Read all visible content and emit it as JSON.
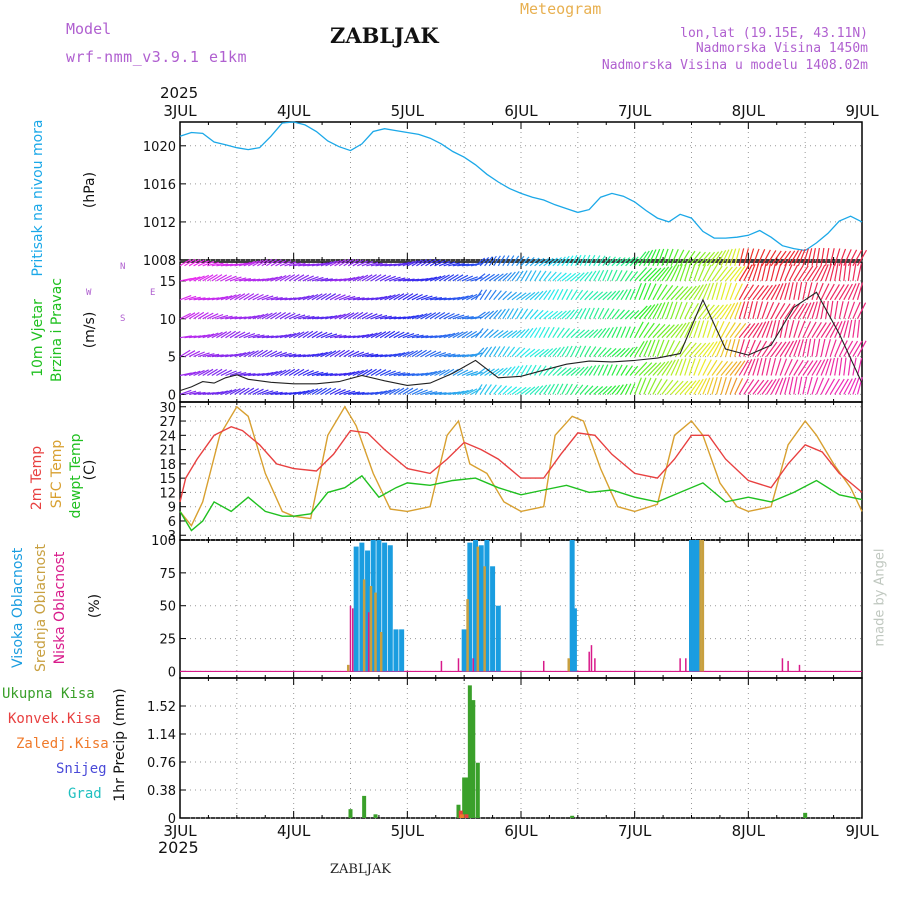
{
  "header": {
    "model_label": "Model",
    "model_name": "wrf-nmm_v3.9.1 e1km",
    "station_title": "ZABLJAK",
    "meteogram_label": "Meteogram",
    "lonlat": "lon,lat (19.15E, 43.11N)",
    "altitude": "Nadmorska Visina 1450m",
    "model_altitude": "Nadmorska Visina u modelu 1408.02m",
    "year_top": "2025",
    "year_bottom": "2025",
    "footer_station": "ZABLJAK",
    "watermark": "made by Angel"
  },
  "colors": {
    "pressure": "#1ba8e8",
    "temp2m": "#e84040",
    "sfc": "#d8a030",
    "dewpt": "#20c020",
    "cloud_high": "#1a9de0",
    "cloud_mid": "#c8a040",
    "cloud_low": "#d81a8a",
    "precip_total": "#3aa02a",
    "precip_conv": "#e84040",
    "precip_strat": "#f07a2a",
    "snow": "#4a4ad8",
    "hail": "#20c0c0",
    "label_purple": "#b060d0",
    "label_orange": "#e8b050"
  },
  "panel_labels": {
    "pressure": {
      "name": "Pritisak na nivou mora",
      "unit": "(hPa)"
    },
    "wind": {
      "line1": "10m Vjetar",
      "line2": "Brzina i Pravac",
      "unit": "(m/s)",
      "compass_n": "N",
      "compass_s": "S",
      "compass_w": "W",
      "compass_e": "E"
    },
    "temp": {
      "t2m": "2m Temp",
      "sfc": "SFC Temp",
      "dew": "dewpt Temp",
      "unit": "(C)"
    },
    "cloud": {
      "high": "Visoka Oblacnost",
      "mid": "Srednja Oblacnost",
      "low": "Niska Oblacnost",
      "unit": "(%)"
    },
    "precip": {
      "total": "Ukupna Kisa",
      "conv": "Konvek.Kisa",
      "strat": "Zaledj.Kisa",
      "snow": "Snijeg",
      "hail": "Grad",
      "axis": "1hr Precip (mm)"
    }
  },
  "chart_data": [
    {
      "type": "line",
      "title": "Pritisak na nivou mora",
      "ylabel": "(hPa)",
      "x_tick_labels": [
        "3JUL",
        "4JUL",
        "5JUL",
        "6JUL",
        "7JUL",
        "8JUL",
        "9JUL"
      ],
      "y_tick_labels": [
        "1008",
        "1012",
        "1016",
        "1020"
      ],
      "ylim": [
        1008,
        1022.5
      ],
      "grid": true,
      "series": [
        {
          "name": "Pritisak na nivou mora",
          "x_days": [
            0,
            0.1,
            0.2,
            0.3,
            0.4,
            0.5,
            0.6,
            0.7,
            0.8,
            0.9,
            1.0,
            1.1,
            1.2,
            1.3,
            1.4,
            1.5,
            1.6,
            1.7,
            1.8,
            1.9,
            2.0,
            2.1,
            2.2,
            2.3,
            2.4,
            2.5,
            2.6,
            2.7,
            2.8,
            2.9,
            3.0,
            3.1,
            3.2,
            3.3,
            3.4,
            3.5,
            3.6,
            3.7,
            3.8,
            3.9,
            4.0,
            4.1,
            4.2,
            4.3,
            4.4,
            4.5,
            4.6,
            4.7,
            4.8,
            4.9,
            5.0,
            5.1,
            5.2,
            5.3,
            5.4,
            5.5,
            5.6,
            5.7,
            5.8,
            5.9,
            6.0
          ],
          "values": [
            1021.0,
            1021.4,
            1021.3,
            1020.4,
            1020.1,
            1019.8,
            1019.6,
            1019.8,
            1021.0,
            1022.4,
            1022.5,
            1022.2,
            1021.5,
            1020.5,
            1019.9,
            1019.5,
            1020.2,
            1021.5,
            1021.8,
            1021.6,
            1021.4,
            1021.2,
            1020.8,
            1020.2,
            1019.4,
            1018.8,
            1018.0,
            1017.0,
            1016.2,
            1015.5,
            1015.0,
            1014.6,
            1014.3,
            1013.8,
            1013.4,
            1013.0,
            1013.3,
            1014.6,
            1015.0,
            1014.7,
            1014.1,
            1013.2,
            1012.4,
            1012.0,
            1012.8,
            1012.4,
            1011.0,
            1010.3,
            1010.3,
            1010.4,
            1010.6,
            1011.1,
            1010.4,
            1009.5,
            1009.2,
            1009.0,
            1009.8,
            1010.8,
            1012.1,
            1012.6,
            1012.0
          ]
        }
      ]
    },
    {
      "type": "line",
      "title": "10m Vjetar Brzina i Pravac",
      "ylabel": "(m/s)",
      "y_tick_labels": [
        "0",
        "5",
        "10",
        "15"
      ],
      "ylim": [
        -1,
        17.5
      ],
      "grid": true,
      "series": [
        {
          "name": "10m Vjetar Brzina i Pravac",
          "x_days": [
            0,
            0.1,
            0.2,
            0.3,
            0.4,
            0.5,
            0.6,
            0.8,
            1.0,
            1.2,
            1.4,
            1.6,
            1.8,
            2.0,
            2.2,
            2.4,
            2.6,
            2.8,
            3.0,
            3.2,
            3.4,
            3.6,
            3.8,
            4.0,
            4.2,
            4.4,
            4.6,
            4.8,
            5.0,
            5.2,
            5.4,
            5.6,
            5.8,
            6.0
          ],
          "values": [
            0.5,
            1.0,
            1.7,
            1.5,
            2.2,
            2.6,
            2.0,
            1.6,
            1.4,
            1.4,
            1.7,
            2.5,
            1.8,
            1.2,
            1.5,
            2.8,
            4.5,
            2.2,
            2.4,
            3.2,
            4.0,
            4.4,
            4.3,
            4.5,
            4.8,
            5.4,
            12.5,
            6.0,
            5.2,
            6.5,
            11.5,
            13.5,
            8.0,
            1.5
          ]
        }
      ]
    },
    {
      "type": "line",
      "ylabel": "(C)",
      "y_tick_labels": [
        "3",
        "6",
        "9",
        "12",
        "15",
        "18",
        "21",
        "24",
        "27",
        "30"
      ],
      "ylim": [
        2,
        31
      ],
      "grid": true,
      "series": [
        {
          "name": "2m Temp",
          "x_days": [
            0,
            0.05,
            0.15,
            0.3,
            0.45,
            0.55,
            0.7,
            0.85,
            1.0,
            1.2,
            1.35,
            1.5,
            1.65,
            1.8,
            2.0,
            2.2,
            2.35,
            2.5,
            2.65,
            2.8,
            3.0,
            3.2,
            3.35,
            3.5,
            3.65,
            3.8,
            4.0,
            4.2,
            4.35,
            4.5,
            4.65,
            4.8,
            5.0,
            5.2,
            5.35,
            5.5,
            5.65,
            5.8,
            6.0
          ],
          "values": [
            10.0,
            15.0,
            19.0,
            24.0,
            25.8,
            25.0,
            22.0,
            18.0,
            17.0,
            16.5,
            20.0,
            25.0,
            24.5,
            21.0,
            17.0,
            16.0,
            19.0,
            22.5,
            21.0,
            19.0,
            15.0,
            15.0,
            20.0,
            24.5,
            24.0,
            20.0,
            16.0,
            15.0,
            19.0,
            24.0,
            24.0,
            19.0,
            14.5,
            13.0,
            18.0,
            22.0,
            20.5,
            16.0,
            12.0
          ]
        },
        {
          "name": "SFC Temp",
          "x_days": [
            0,
            0.1,
            0.2,
            0.35,
            0.5,
            0.6,
            0.75,
            0.9,
            1.0,
            1.15,
            1.3,
            1.45,
            1.55,
            1.7,
            1.85,
            2.0,
            2.2,
            2.35,
            2.45,
            2.55,
            2.7,
            2.85,
            3.0,
            3.2,
            3.3,
            3.45,
            3.55,
            3.7,
            3.85,
            4.0,
            4.2,
            4.35,
            4.5,
            4.6,
            4.75,
            4.9,
            5.0,
            5.2,
            5.35,
            5.5,
            5.6,
            5.75,
            5.9,
            6.0
          ],
          "values": [
            8.0,
            5.0,
            10.0,
            24.0,
            30.0,
            28.0,
            16.0,
            8.0,
            7.0,
            6.5,
            24.0,
            30.0,
            26.0,
            16.0,
            8.5,
            8.0,
            9.0,
            24.0,
            27.0,
            18.0,
            16.0,
            10.0,
            8.0,
            9.0,
            24.0,
            28.0,
            27.0,
            17.0,
            9.0,
            8.0,
            9.5,
            24.0,
            27.0,
            24.0,
            14.0,
            9.0,
            8.0,
            9.0,
            22.0,
            27.0,
            24.0,
            18.0,
            13.0,
            8.0
          ]
        },
        {
          "name": "dewpt Temp",
          "x_days": [
            0,
            0.1,
            0.2,
            0.3,
            0.45,
            0.6,
            0.75,
            0.9,
            1.0,
            1.15,
            1.3,
            1.45,
            1.6,
            1.75,
            1.9,
            2.0,
            2.2,
            2.4,
            2.6,
            2.8,
            3.0,
            3.2,
            3.4,
            3.6,
            3.8,
            4.0,
            4.2,
            4.4,
            4.6,
            4.8,
            5.0,
            5.2,
            5.4,
            5.6,
            5.8,
            6.0
          ],
          "values": [
            8.0,
            4.0,
            6.0,
            10.0,
            8.0,
            11.0,
            8.0,
            7.0,
            7.0,
            7.5,
            12.0,
            13.0,
            15.5,
            11.0,
            13.0,
            14.0,
            13.5,
            14.5,
            15.0,
            13.0,
            11.5,
            12.5,
            13.5,
            12.0,
            12.5,
            11.0,
            10.0,
            12.0,
            14.0,
            10.0,
            11.0,
            10.0,
            12.0,
            14.5,
            11.5,
            10.5
          ]
        }
      ]
    },
    {
      "type": "bar",
      "ylabel": "(%)",
      "y_tick_labels": [
        "0",
        "25",
        "50",
        "75",
        "100"
      ],
      "ylim": [
        -5,
        100
      ],
      "grid": true,
      "series": [
        {
          "name": "Visoka Oblacnost",
          "x_days": [
            1.55,
            1.6,
            1.65,
            1.7,
            1.75,
            1.8,
            1.85,
            1.9,
            1.95,
            2.5,
            2.55,
            2.6,
            2.65,
            2.7,
            2.75,
            2.8,
            3.45,
            3.47,
            4.5,
            4.52,
            4.55
          ],
          "values": [
            95,
            98,
            92,
            100,
            100,
            98,
            96,
            32,
            32,
            32,
            98,
            100,
            96,
            100,
            80,
            50,
            100,
            48,
            100,
            100,
            100
          ]
        },
        {
          "name": "Srednja Oblacnost",
          "x_days": [
            1.48,
            1.62,
            1.68,
            1.72,
            1.77,
            2.53,
            2.62,
            2.68,
            3.42,
            4.58,
            4.6
          ],
          "values": [
            5,
            70,
            65,
            60,
            30,
            55,
            95,
            80,
            10,
            100,
            100
          ]
        },
        {
          "name": "Niska Oblacnost",
          "x_days": [
            1.5,
            1.52,
            1.66,
            2.3,
            2.45,
            2.58,
            3.2,
            3.6,
            3.62,
            3.65,
            4.4,
            4.45,
            5.3,
            5.35,
            5.45
          ],
          "values": [
            50,
            48,
            45,
            8,
            10,
            10,
            8,
            15,
            20,
            10,
            10,
            10,
            10,
            8,
            5
          ]
        }
      ]
    },
    {
      "type": "bar",
      "ylabel": "1hr Precip (mm)",
      "y_tick_labels": [
        "0",
        "0.38",
        "0.76",
        "1.14",
        "1.52"
      ],
      "ylim": [
        0,
        1.9
      ],
      "grid": true,
      "series": [
        {
          "name": "Ukupna Kisa",
          "x_days": [
            1.5,
            1.62,
            1.72,
            2.45,
            2.5,
            2.53,
            2.55,
            2.58,
            2.62,
            3.45,
            5.5
          ],
          "values": [
            0.12,
            0.3,
            0.05,
            0.18,
            0.55,
            0.55,
            1.8,
            1.6,
            0.75,
            0.03,
            0.07
          ]
        },
        {
          "name": "Konvek.Kisa",
          "x_days": [
            2.47,
            2.52
          ],
          "values": [
            0.1,
            0.05
          ]
        },
        {
          "name": "Zaledj.Kisa",
          "x_days": [
            2.48
          ],
          "values": [
            0.05
          ]
        }
      ]
    }
  ]
}
